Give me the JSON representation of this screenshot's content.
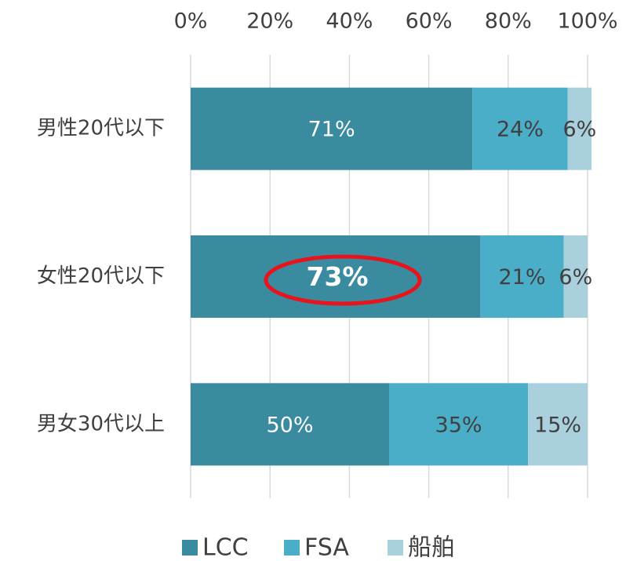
{
  "chart_data": {
    "type": "stacked-barh",
    "categories": [
      "男性20代以下",
      "女性20代以下",
      "男女30代以上"
    ],
    "series": [
      {
        "name": "LCC",
        "color": "#3a8ba0",
        "values": [
          71,
          73,
          50
        ],
        "value_labels": [
          "71%",
          "73%",
          "50%"
        ]
      },
      {
        "name": "FSA",
        "color": "#4aaec8",
        "values": [
          24,
          21,
          35
        ],
        "value_labels": [
          "24%",
          "21%",
          "35%"
        ]
      },
      {
        "name": "船舶",
        "color": "#a9d0dc",
        "values": [
          6,
          6,
          15
        ],
        "value_labels": [
          "6%",
          "6%",
          "15%"
        ]
      }
    ],
    "xlim": [
      0,
      100
    ],
    "xticks": [
      {
        "value": 0,
        "label": "0%"
      },
      {
        "value": 20,
        "label": "20%"
      },
      {
        "value": 40,
        "label": "40%"
      },
      {
        "value": 60,
        "label": "60%"
      },
      {
        "value": 80,
        "label": "80%"
      },
      {
        "value": 100,
        "label": "100%"
      }
    ],
    "grid": true,
    "legend": "bottom"
  }
}
